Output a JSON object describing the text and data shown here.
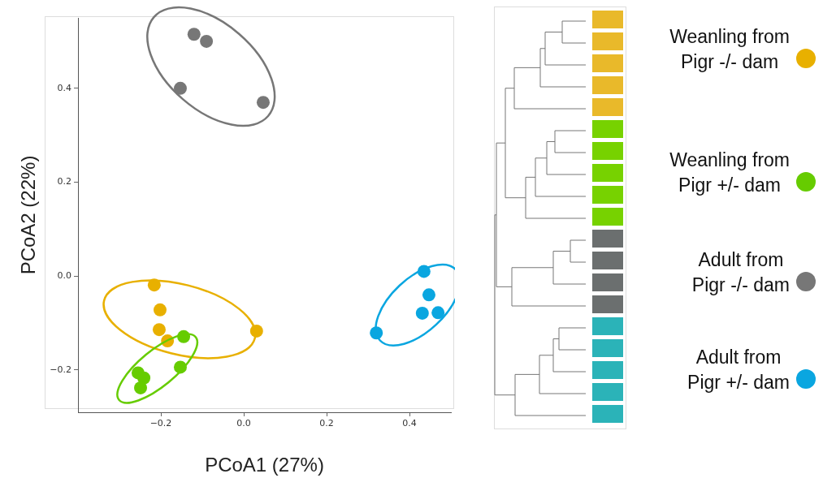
{
  "chart_data": {
    "type": "scatter",
    "xlabel": "PCoA1 (27%)",
    "ylabel": "PCoA2 (22%)",
    "xlim": [
      -0.4,
      0.5
    ],
    "xticks": [
      -0.2,
      {
        "value": 0,
        "label": "0.0"
      },
      0.2,
      0.4
    ],
    "ylim": [
      -0.29,
      0.55
    ],
    "yticks": [
      -0.2,
      {
        "value": 0,
        "label": "0.0"
      },
      0.2,
      0.4
    ],
    "grid": false,
    "legend": "right",
    "marker": "circle",
    "series": [
      {
        "name": "Weanling from Pigr -/- dam",
        "color": "#e8b000",
        "x": [
          -0.216,
          -0.202,
          -0.204,
          -0.184,
          0.031
        ],
        "values": [
          -0.019,
          -0.072,
          -0.114,
          -0.138,
          -0.117
        ]
      },
      {
        "name": "Weanling from Pigr +/- dam",
        "color": "#66cc00",
        "x": [
          -0.145,
          -0.153,
          -0.255,
          -0.241,
          -0.249
        ],
        "values": [
          -0.129,
          -0.194,
          -0.206,
          -0.217,
          -0.238
        ]
      },
      {
        "name": "Adult from Pigr -/- dam",
        "color": "#777777",
        "x": [
          -0.12,
          -0.09,
          -0.153,
          0.047
        ],
        "values": [
          0.515,
          0.5,
          0.4,
          0.37
        ]
      },
      {
        "name": "Adult from Pigr +/- dam",
        "color": "#0aa6e0",
        "x": [
          0.435,
          0.447,
          0.431,
          0.469,
          0.32
        ],
        "values": [
          0.01,
          -0.04,
          -0.079,
          -0.078,
          -0.121
        ]
      }
    ]
  }
}
